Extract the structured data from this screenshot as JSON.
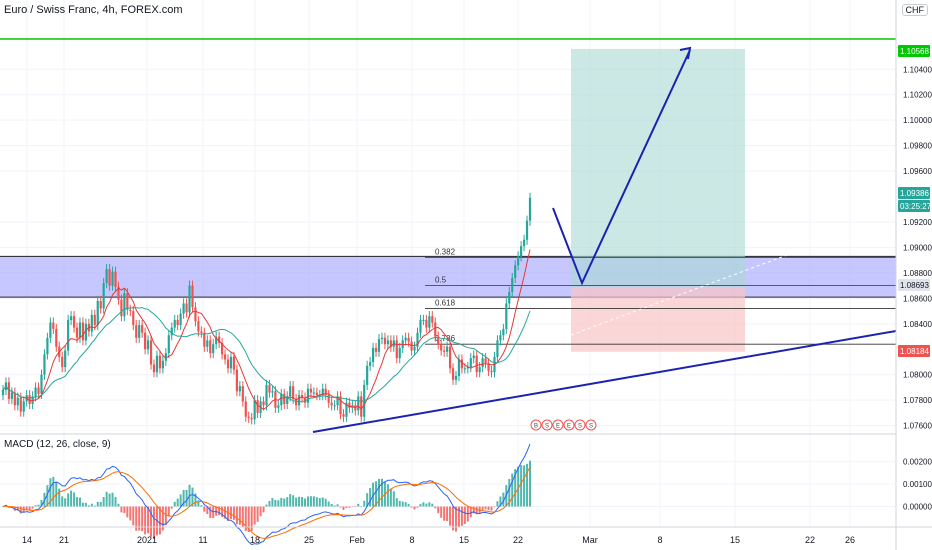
{
  "header": {
    "symbol_title": "Euro / Swiss Franc, 4h, FOREX.com",
    "currency_badge": "CHF"
  },
  "colors": {
    "up": "#26a69a",
    "down": "#ef5350",
    "zone": "#9999ff",
    "target": "#a9d9d4",
    "stop": "#f9c5c5",
    "trend": "#1a22b0",
    "green_line": "#00c800",
    "macd_line": "#2962ff",
    "signal_line": "#ff6d00"
  },
  "chart_data": [
    {
      "type": "candlestick",
      "title": "Euro / Swiss Franc, 4h, FOREX.com",
      "x_ticks": [
        "14",
        "21",
        "2021",
        "11",
        "18",
        "25",
        "Feb",
        "8",
        "15",
        "22",
        "Mar",
        "8",
        "15",
        "22",
        "26"
      ],
      "y_ticks": [
        "1.10400",
        "1.10200",
        "1.10000",
        "1.09800",
        "1.09600",
        "1.09200",
        "1.09000",
        "1.08800",
        "1.08600",
        "1.08400",
        "1.08000",
        "1.07800",
        "1.07600"
      ],
      "ylim": [
        1.0755,
        1.1085
      ],
      "price_labels": {
        "resistance": "1.10568",
        "current": "1.09386",
        "countdown": "03:25:27",
        "entry": "1.08693",
        "stop": "1.08184"
      },
      "fib_levels": [
        "0.382",
        "0.5",
        "0.618",
        "0.786"
      ],
      "closes": [
        1.0788,
        1.0794,
        1.0781,
        1.0786,
        1.0776,
        1.0782,
        1.0771,
        1.0779,
        1.0784,
        1.0777,
        1.0783,
        1.079,
        1.0785,
        1.08,
        1.0816,
        1.0829,
        1.0841,
        1.0836,
        1.0822,
        1.0814,
        1.0806,
        1.0819,
        1.0843,
        1.0846,
        1.0837,
        1.0829,
        1.0841,
        1.0827,
        1.084,
        1.0834,
        1.0847,
        1.0839,
        1.0858,
        1.0852,
        1.0872,
        1.0883,
        1.087,
        1.0881,
        1.0869,
        1.0859,
        1.0846,
        1.0864,
        1.0851,
        1.085,
        1.0839,
        1.0829,
        1.0839,
        1.0833,
        1.082,
        1.0827,
        1.0808,
        1.0802,
        1.0815,
        1.0805,
        1.0811,
        1.0817,
        1.0831,
        1.0837,
        1.0843,
        1.0839,
        1.0848,
        1.0856,
        1.0849,
        1.087,
        1.0853,
        1.0842,
        1.0834,
        1.0833,
        1.0822,
        1.0827,
        1.0817,
        1.0824,
        1.083,
        1.0825,
        1.0816,
        1.0812,
        1.0805,
        1.0814,
        1.0804,
        1.0787,
        1.0791,
        1.0779,
        1.0767,
        1.0766,
        1.0765,
        1.078,
        1.077,
        1.0779,
        1.0776,
        1.0792,
        1.0786,
        1.0787,
        1.0774,
        1.0776,
        1.0785,
        1.0777,
        1.0783,
        1.0791,
        1.0781,
        1.0776,
        1.0784,
        1.0782,
        1.0778,
        1.0789,
        1.0786,
        1.0786,
        1.0784,
        1.0784,
        1.0789,
        1.0784,
        1.0778,
        1.0776,
        1.0776,
        1.0783,
        1.0769,
        1.0767,
        1.0778,
        1.0774,
        1.0776,
        1.0772,
        1.0783,
        1.0767,
        1.0792,
        1.0807,
        1.081,
        1.0821,
        1.0818,
        1.0828,
        1.0829,
        1.0824,
        1.0827,
        1.0822,
        1.0827,
        1.0813,
        1.0821,
        1.0827,
        1.0829,
        1.0826,
        1.0819,
        1.0822,
        1.0833,
        1.0843,
        1.0843,
        1.0837,
        1.0846,
        1.0841,
        1.083,
        1.0824,
        1.0819,
        1.0818,
        1.0822,
        1.0805,
        1.0796,
        1.0799,
        1.0812,
        1.0805,
        1.0805,
        1.0806,
        1.0813,
        1.0815,
        1.0802,
        1.0806,
        1.0813,
        1.0809,
        1.0803,
        1.0802,
        1.0814,
        1.0827,
        1.0831,
        1.0836,
        1.0856,
        1.0865,
        1.0876,
        1.0886,
        1.0893,
        1.0901,
        1.0906,
        1.0921,
        1.0939
      ],
      "macd_ticks": [
        "0.00200",
        "0.00100",
        "0.00000"
      ]
    }
  ],
  "sessions": [
    "B",
    "S",
    "E",
    "E",
    "S",
    "S"
  ]
}
